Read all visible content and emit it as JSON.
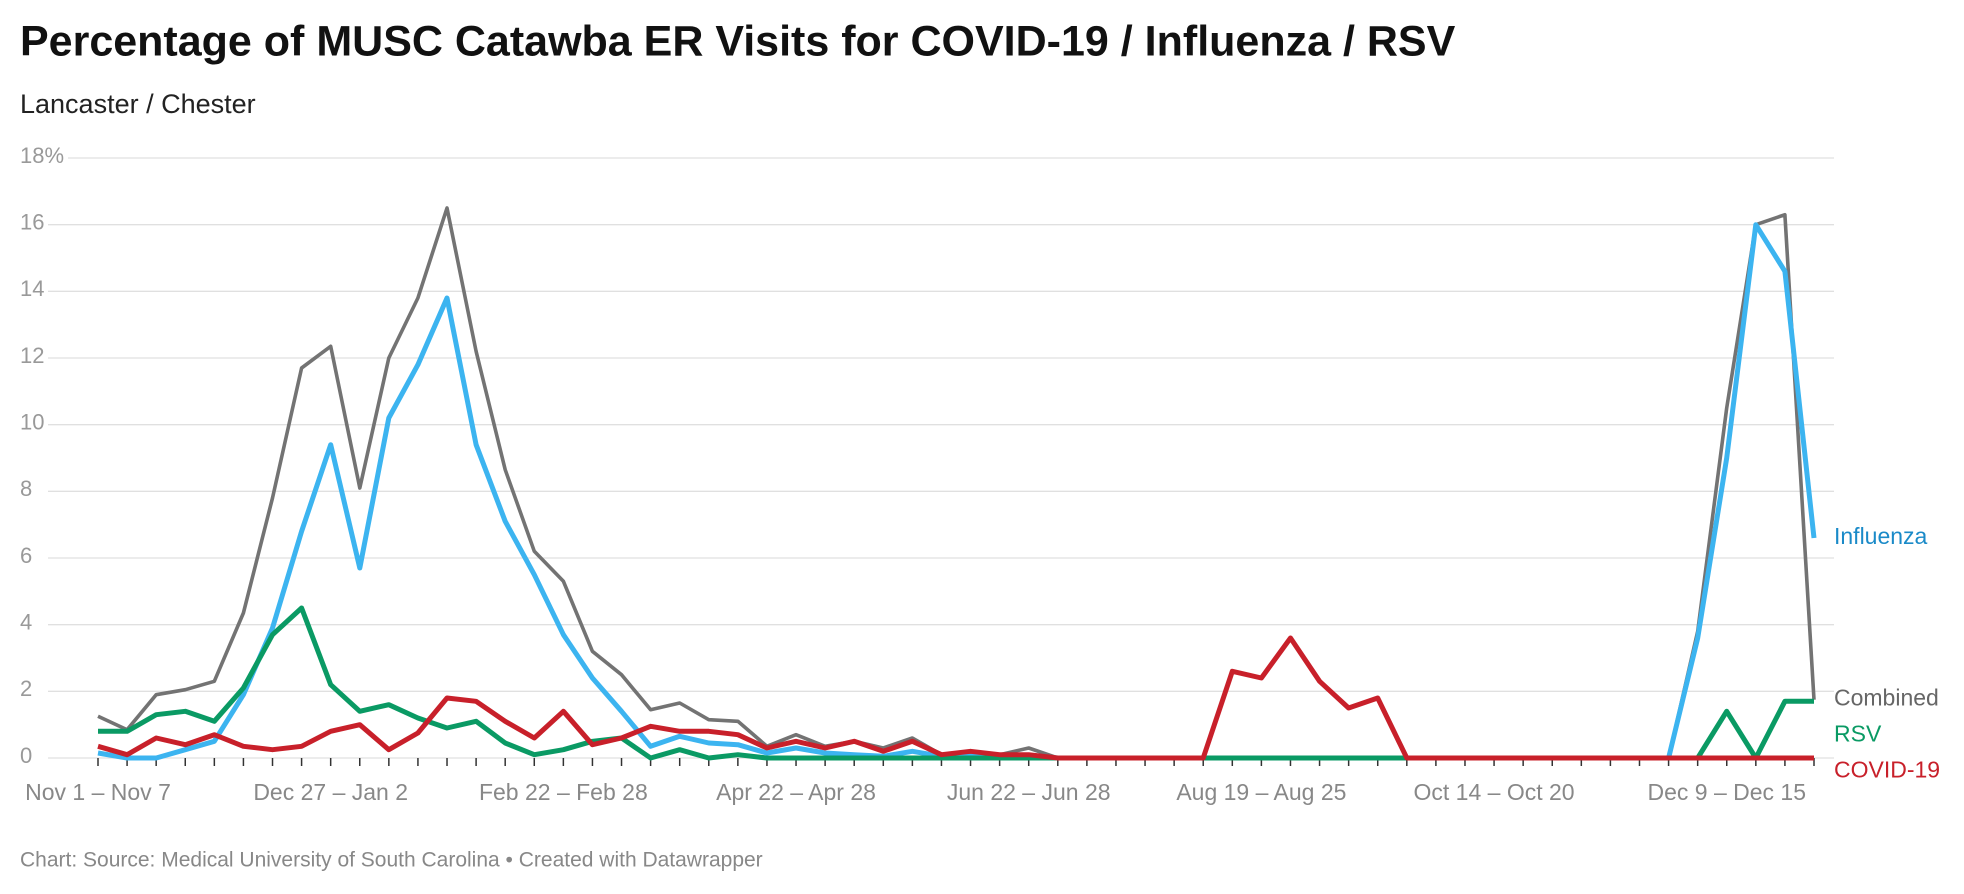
{
  "chart_data": {
    "type": "line",
    "title": "Percentage of MUSC Catawba ER Visits for COVID-19 / Influenza / RSV",
    "subtitle": "Lancaster / Chester",
    "source": "Chart: Source: Medical University of South Carolina • Created with Datawrapper",
    "categories": [
      "Nov 1 – Nov 7",
      null,
      null,
      null,
      null,
      null,
      null,
      null,
      "Dec 27 – Jan 2",
      null,
      null,
      null,
      null,
      null,
      null,
      null,
      "Feb 22 – Feb 28",
      null,
      null,
      null,
      null,
      null,
      null,
      null,
      "Apr 22 – Apr 28",
      null,
      null,
      null,
      null,
      null,
      null,
      null,
      "Jun 22 – Jun 28",
      null,
      null,
      null,
      null,
      null,
      null,
      null,
      "Aug 19 – Aug 25",
      null,
      null,
      null,
      null,
      null,
      null,
      null,
      "Oct 14 – Oct 20",
      null,
      null,
      null,
      null,
      null,
      null,
      null,
      "Dec 9 – Dec 15",
      null,
      null,
      null
    ],
    "series": [
      {
        "name": "Combined",
        "color": "#737373",
        "label_color": "#666666",
        "values": [
          1.25,
          0.85,
          1.9,
          2.05,
          2.3,
          4.35,
          7.8,
          11.7,
          12.35,
          8.1,
          12.0,
          13.8,
          16.5,
          12.2,
          8.65,
          6.2,
          5.3,
          3.2,
          2.5,
          1.45,
          1.65,
          1.15,
          1.1,
          0.35,
          0.7,
          0.35,
          0.5,
          0.3,
          0.6,
          0.1,
          0.15,
          0.1,
          0.3,
          0,
          0,
          0,
          0,
          0,
          0,
          0,
          0,
          0,
          0,
          0,
          0,
          0,
          0,
          0,
          0,
          0,
          0,
          0,
          0,
          0,
          0,
          3.8,
          10.5,
          16.0,
          16.3,
          1.75
        ]
      },
      {
        "name": "Influenza",
        "color": "#3cb4f0",
        "label_color": "#1a8ac8",
        "values": [
          0.15,
          0,
          0,
          0.25,
          0.5,
          1.9,
          3.9,
          6.8,
          9.4,
          5.7,
          10.2,
          11.8,
          13.8,
          9.4,
          7.1,
          5.5,
          3.7,
          2.4,
          1.4,
          0.35,
          0.65,
          0.45,
          0.4,
          0.15,
          0.3,
          0.15,
          0.1,
          0.05,
          0.2,
          0.05,
          0.05,
          0.05,
          0.05,
          0,
          0,
          0,
          0,
          0,
          0,
          0,
          0,
          0,
          0,
          0,
          0,
          0,
          0,
          0,
          0,
          0,
          0,
          0,
          0,
          0,
          0,
          3.6,
          9.0,
          16.0,
          14.6,
          6.6
        ]
      },
      {
        "name": "RSV",
        "color": "#0a9a64",
        "label_color": "#0a9a64",
        "values": [
          0.8,
          0.8,
          1.3,
          1.4,
          1.1,
          2.1,
          3.7,
          4.5,
          2.2,
          1.4,
          1.6,
          1.2,
          0.9,
          1.1,
          0.45,
          0.1,
          0.25,
          0.5,
          0.6,
          0,
          0.25,
          0,
          0.1,
          0,
          0,
          0,
          0,
          0,
          0,
          0,
          0,
          0,
          0,
          0,
          0,
          0,
          0,
          0,
          0,
          0,
          0,
          0,
          0,
          0,
          0,
          0,
          0,
          0,
          0,
          0,
          0,
          0,
          0,
          0,
          0,
          0,
          1.4,
          0,
          1.7,
          1.7
        ]
      },
      {
        "name": "COVID-19",
        "color": "#c8202a",
        "label_color": "#c8202a",
        "values": [
          0.35,
          0.1,
          0.6,
          0.4,
          0.7,
          0.35,
          0.25,
          0.35,
          0.8,
          1.0,
          0.25,
          0.75,
          1.8,
          1.7,
          1.1,
          0.6,
          1.4,
          0.4,
          0.6,
          0.95,
          0.8,
          0.8,
          0.7,
          0.3,
          0.5,
          0.3,
          0.5,
          0.2,
          0.5,
          0.1,
          0.2,
          0.1,
          0.1,
          0,
          0,
          0,
          0,
          0,
          0,
          2.6,
          2.4,
          3.6,
          2.3,
          1.5,
          1.8,
          0,
          0,
          0,
          0,
          0,
          0,
          0,
          0,
          0,
          0,
          0,
          0,
          0,
          0,
          0
        ]
      }
    ],
    "ylim": [
      0,
      18
    ],
    "yticks": [
      0,
      2,
      4,
      6,
      8,
      10,
      12,
      14,
      16,
      {
        "value": 18,
        "label": "18%"
      }
    ],
    "grid": true
  }
}
